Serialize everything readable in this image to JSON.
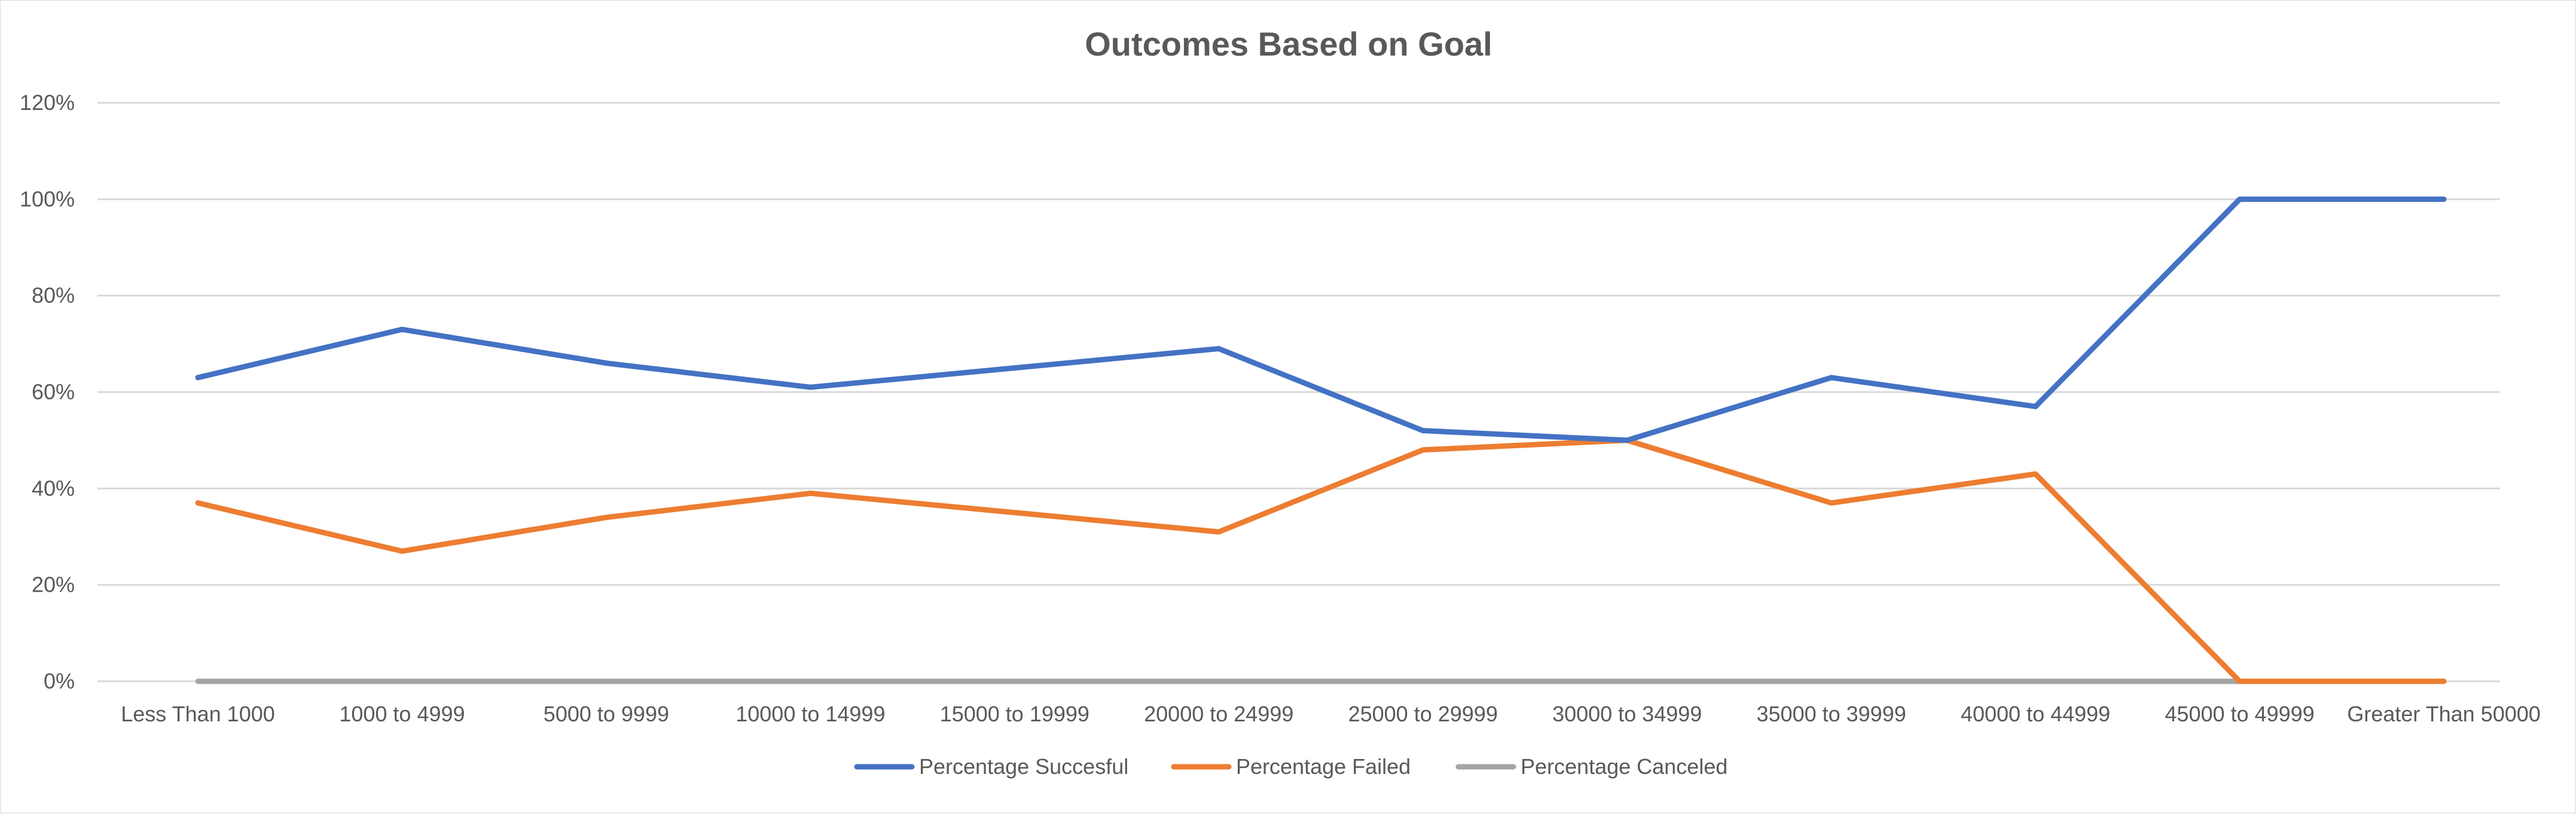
{
  "chart_data": {
    "type": "line",
    "title": "Outcomes Based on Goal",
    "xlabel": "",
    "ylabel": "",
    "ylim": [
      0,
      120
    ],
    "y_ticks": [
      "0%",
      "20%",
      "40%",
      "60%",
      "80%",
      "100%",
      "120%"
    ],
    "y_tick_values": [
      0,
      20,
      40,
      60,
      80,
      100,
      120
    ],
    "categories": [
      "Less Than 1000",
      "1000 to 4999",
      "5000 to 9999",
      "10000 to 14999",
      "15000 to 19999",
      "20000 to 24999",
      "25000 to 29999",
      "30000 to 34999",
      "35000 to 39999",
      "40000 to 44999",
      "45000 to 49999",
      "Greater Than 50000"
    ],
    "series": [
      {
        "name": "Percentage Succesful",
        "color": "#4472C4",
        "values": [
          63,
          73,
          66,
          61,
          65,
          69,
          52,
          50,
          63,
          57,
          100,
          100
        ]
      },
      {
        "name": "Percentage Failed",
        "color": "#ED7D31",
        "values": [
          37,
          27,
          34,
          39,
          35,
          31,
          48,
          50,
          37,
          43,
          0,
          0
        ]
      },
      {
        "name": "Percentage Canceled",
        "color": "#A5A5A5",
        "values": [
          0,
          0,
          0,
          0,
          0,
          0,
          0,
          0,
          0,
          0,
          0,
          0
        ]
      }
    ],
    "grid": true,
    "legend_position": "bottom"
  }
}
